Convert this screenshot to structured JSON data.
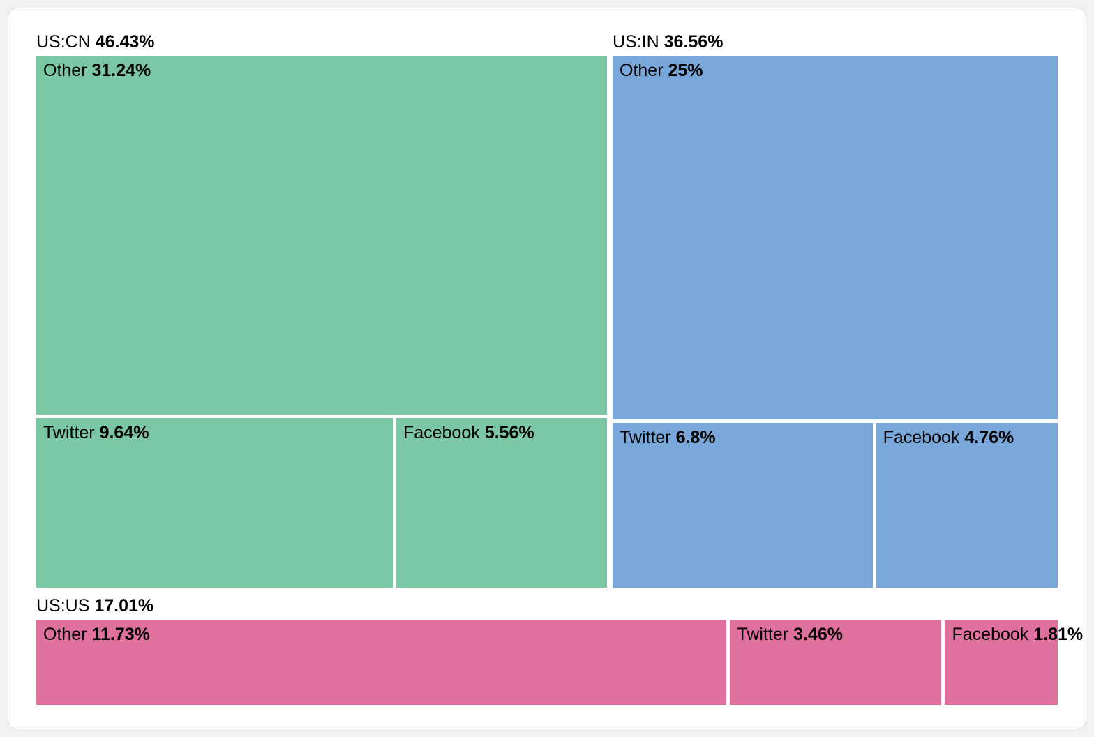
{
  "chart_data": {
    "type": "treemap",
    "title": "",
    "legend": "none",
    "value_format": "percent",
    "groups": [
      {
        "name": "US:CN",
        "percent": "46.43%",
        "value": 46.43,
        "color": "#7cc7a3",
        "children": [
          {
            "name": "Other",
            "percent": "31.24%",
            "value": 31.24
          },
          {
            "name": "Twitter",
            "percent": "9.64%",
            "value": 9.64
          },
          {
            "name": "Facebook",
            "percent": "5.56%",
            "value": 5.56
          }
        ]
      },
      {
        "name": "US:IN",
        "percent": "36.56%",
        "value": 36.56,
        "color": "#7aa7d9",
        "children": [
          {
            "name": "Other",
            "percent": "25%",
            "value": 25
          },
          {
            "name": "Twitter",
            "percent": "6.8%",
            "value": 6.8
          },
          {
            "name": "Facebook",
            "percent": "4.76%",
            "value": 4.76
          }
        ]
      },
      {
        "name": "US:US",
        "percent": "17.01%",
        "value": 17.01,
        "color": "#e0709d",
        "children": [
          {
            "name": "Other",
            "percent": "11.73%",
            "value": 11.73
          },
          {
            "name": "Twitter",
            "percent": "3.46%",
            "value": 3.46
          },
          {
            "name": "Facebook",
            "percent": "1.81%",
            "value": 1.81
          }
        ]
      }
    ],
    "colors": {
      "us_cn": "#7cc7a3",
      "us_in": "#7aa7d9",
      "us_us": "#e0709d",
      "text": "#000000",
      "card_background": "#ffffff",
      "card_border": "#dcdcdc"
    }
  }
}
